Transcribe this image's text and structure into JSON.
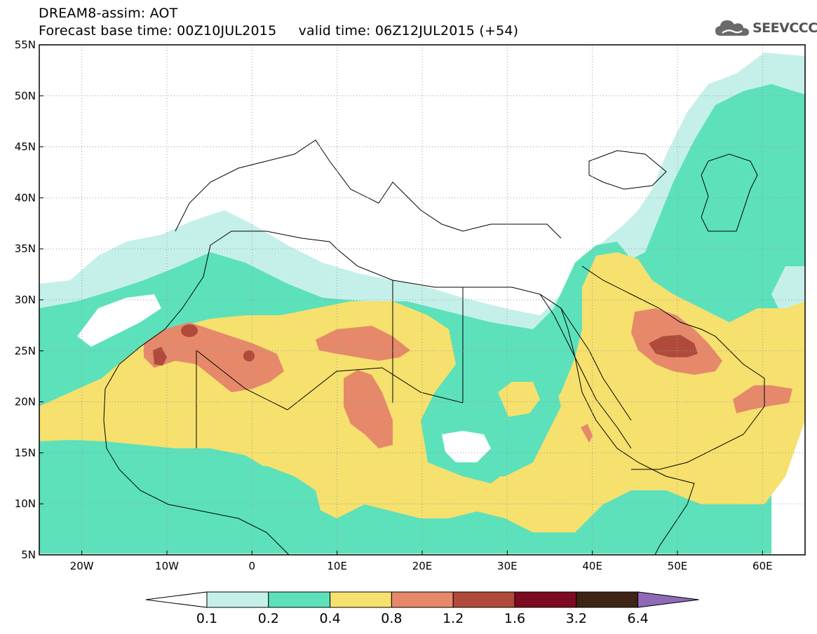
{
  "header": {
    "title_line1": "DREAM8-assim: AOT",
    "title_line2_base": "Forecast base time: 00Z10JUL2015",
    "title_line2_valid": "valid time: 06Z12JUL2015 (+54)"
  },
  "logo": {
    "text": "SEEVCCC",
    "icon": "cloud-icon",
    "color": "#555555"
  },
  "map": {
    "projection": "lat-lon",
    "lon_range": [
      -25,
      65
    ],
    "lat_range": [
      5,
      55
    ],
    "grid": "dotted",
    "lat_ticks": [
      "5N",
      "10N",
      "15N",
      "20N",
      "25N",
      "30N",
      "35N",
      "40N",
      "45N",
      "50N",
      "55N"
    ],
    "lon_ticks": [
      "20W",
      "10W",
      "0",
      "10E",
      "20E",
      "30E",
      "40E",
      "50E",
      "60E"
    ]
  },
  "colorbar": {
    "labels": [
      "0.1",
      "0.2",
      "0.4",
      "0.8",
      "1.2",
      "1.6",
      "3.2",
      "6.4"
    ],
    "colors": [
      "#ffffff",
      "#c5f0ea",
      "#5ce1bb",
      "#f6e06e",
      "#e5896a",
      "#b04a3a",
      "#7d0a20",
      "#3e2414",
      "#8e6ab8"
    ]
  }
}
